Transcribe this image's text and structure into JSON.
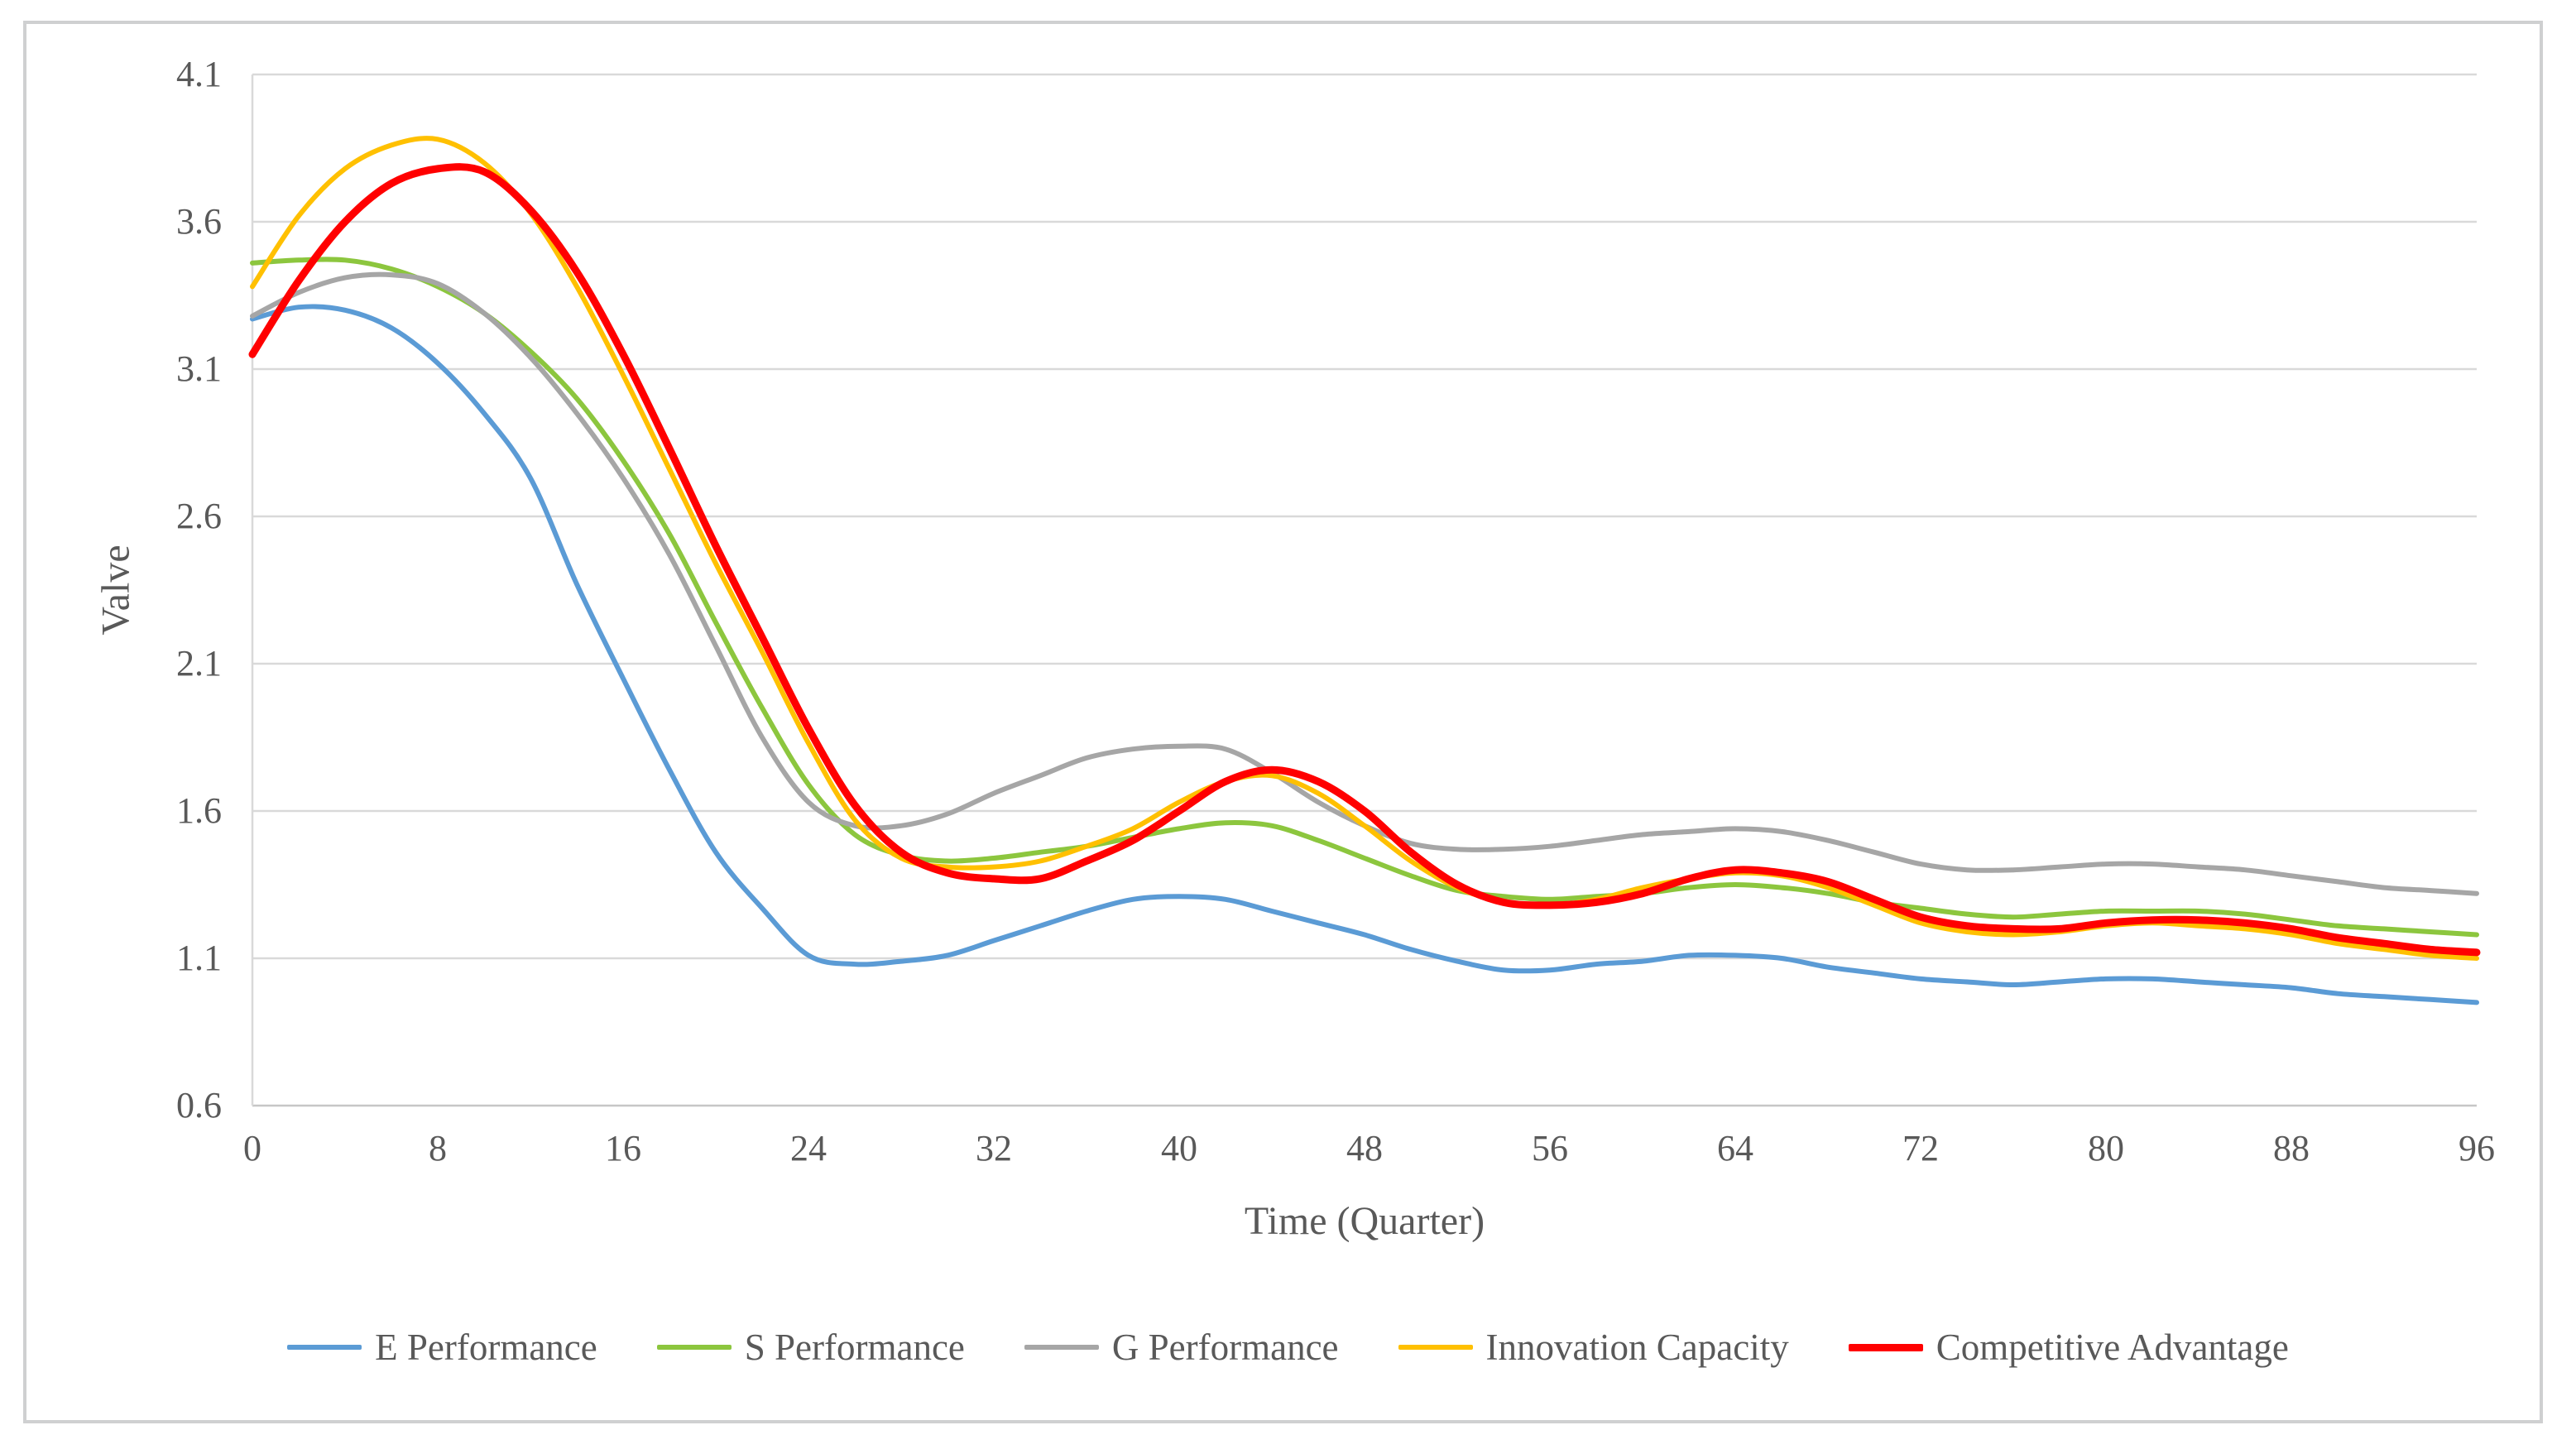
{
  "chart_data": {
    "type": "line",
    "title": "",
    "xlabel": "Time (Quarter)",
    "ylabel": "Valve",
    "xlim": [
      0,
      96
    ],
    "ylim": [
      0.6,
      4.1
    ],
    "x_ticks": [
      "0",
      "8",
      "16",
      "24",
      "32",
      "40",
      "48",
      "56",
      "64",
      "72",
      "80",
      "88",
      "96"
    ],
    "y_ticks": [
      "4.1",
      "3.6",
      "3.1",
      "2.6",
      "2.1",
      "1.6",
      "1.1",
      "0.6"
    ],
    "grid": "horizontal",
    "legend_position": "bottom",
    "smooth": true,
    "colors": {
      "gridline": "#d9d9d9",
      "axis_line": "#c6c6c6",
      "axis_text": "#595959",
      "background": "#ffffff",
      "frame": "#cfd0d1"
    },
    "x": [
      0,
      2,
      4,
      6,
      8,
      10,
      12,
      14,
      16,
      18,
      20,
      22,
      24,
      26,
      28,
      30,
      32,
      34,
      36,
      38,
      40,
      42,
      44,
      46,
      48,
      50,
      52,
      54,
      56,
      58,
      60,
      62,
      64,
      66,
      68,
      70,
      72,
      74,
      76,
      78,
      80,
      82,
      84,
      86,
      88,
      90,
      92,
      94,
      96
    ],
    "series": [
      {
        "name": "E Performance",
        "color": "#5b9bd5",
        "stroke_width": 6,
        "values": [
          3.27,
          3.31,
          3.3,
          3.24,
          3.12,
          2.95,
          2.73,
          2.37,
          2.05,
          1.74,
          1.46,
          1.27,
          1.11,
          1.08,
          1.09,
          1.11,
          1.16,
          1.21,
          1.26,
          1.3,
          1.31,
          1.3,
          1.26,
          1.22,
          1.18,
          1.13,
          1.09,
          1.06,
          1.06,
          1.08,
          1.09,
          1.11,
          1.11,
          1.1,
          1.07,
          1.05,
          1.03,
          1.02,
          1.01,
          1.02,
          1.03,
          1.03,
          1.02,
          1.01,
          1.0,
          0.98,
          0.97,
          0.96,
          0.95
        ]
      },
      {
        "name": "S Performance",
        "color": "#8cc63e",
        "stroke_width": 6,
        "values": [
          3.46,
          3.47,
          3.47,
          3.44,
          3.38,
          3.29,
          3.16,
          3.0,
          2.79,
          2.54,
          2.24,
          1.95,
          1.69,
          1.52,
          1.45,
          1.43,
          1.44,
          1.46,
          1.48,
          1.51,
          1.54,
          1.56,
          1.55,
          1.5,
          1.44,
          1.38,
          1.33,
          1.31,
          1.3,
          1.31,
          1.32,
          1.34,
          1.35,
          1.34,
          1.32,
          1.29,
          1.27,
          1.25,
          1.24,
          1.25,
          1.26,
          1.26,
          1.26,
          1.25,
          1.23,
          1.21,
          1.2,
          1.19,
          1.18
        ]
      },
      {
        "name": "G Performance",
        "color": "#a6a6a6",
        "stroke_width": 6,
        "values": [
          3.28,
          3.36,
          3.41,
          3.42,
          3.39,
          3.29,
          3.14,
          2.95,
          2.73,
          2.47,
          2.16,
          1.85,
          1.63,
          1.55,
          1.55,
          1.59,
          1.66,
          1.72,
          1.78,
          1.81,
          1.82,
          1.81,
          1.73,
          1.63,
          1.55,
          1.49,
          1.47,
          1.47,
          1.48,
          1.5,
          1.52,
          1.53,
          1.54,
          1.53,
          1.5,
          1.46,
          1.42,
          1.4,
          1.4,
          1.41,
          1.42,
          1.42,
          1.41,
          1.4,
          1.38,
          1.36,
          1.34,
          1.33,
          1.32
        ]
      },
      {
        "name": "Innovation Capacity",
        "color": "#ffc000",
        "stroke_width": 6,
        "values": [
          3.38,
          3.62,
          3.78,
          3.86,
          3.88,
          3.8,
          3.63,
          3.38,
          3.08,
          2.76,
          2.44,
          2.14,
          1.83,
          1.57,
          1.44,
          1.41,
          1.41,
          1.43,
          1.48,
          1.54,
          1.63,
          1.7,
          1.72,
          1.66,
          1.55,
          1.43,
          1.34,
          1.29,
          1.28,
          1.3,
          1.34,
          1.37,
          1.39,
          1.38,
          1.34,
          1.28,
          1.22,
          1.19,
          1.18,
          1.19,
          1.21,
          1.22,
          1.21,
          1.2,
          1.18,
          1.15,
          1.13,
          1.11,
          1.1
        ]
      },
      {
        "name": "Competitive Advantage",
        "color": "#ff0000",
        "stroke_width": 9,
        "values": [
          3.15,
          3.4,
          3.6,
          3.73,
          3.78,
          3.77,
          3.64,
          3.43,
          3.15,
          2.83,
          2.5,
          2.19,
          1.88,
          1.62,
          1.46,
          1.39,
          1.37,
          1.37,
          1.43,
          1.5,
          1.6,
          1.7,
          1.74,
          1.7,
          1.6,
          1.46,
          1.35,
          1.29,
          1.28,
          1.29,
          1.32,
          1.37,
          1.4,
          1.39,
          1.36,
          1.3,
          1.24,
          1.21,
          1.2,
          1.2,
          1.22,
          1.23,
          1.23,
          1.22,
          1.2,
          1.17,
          1.15,
          1.13,
          1.12
        ]
      }
    ]
  }
}
